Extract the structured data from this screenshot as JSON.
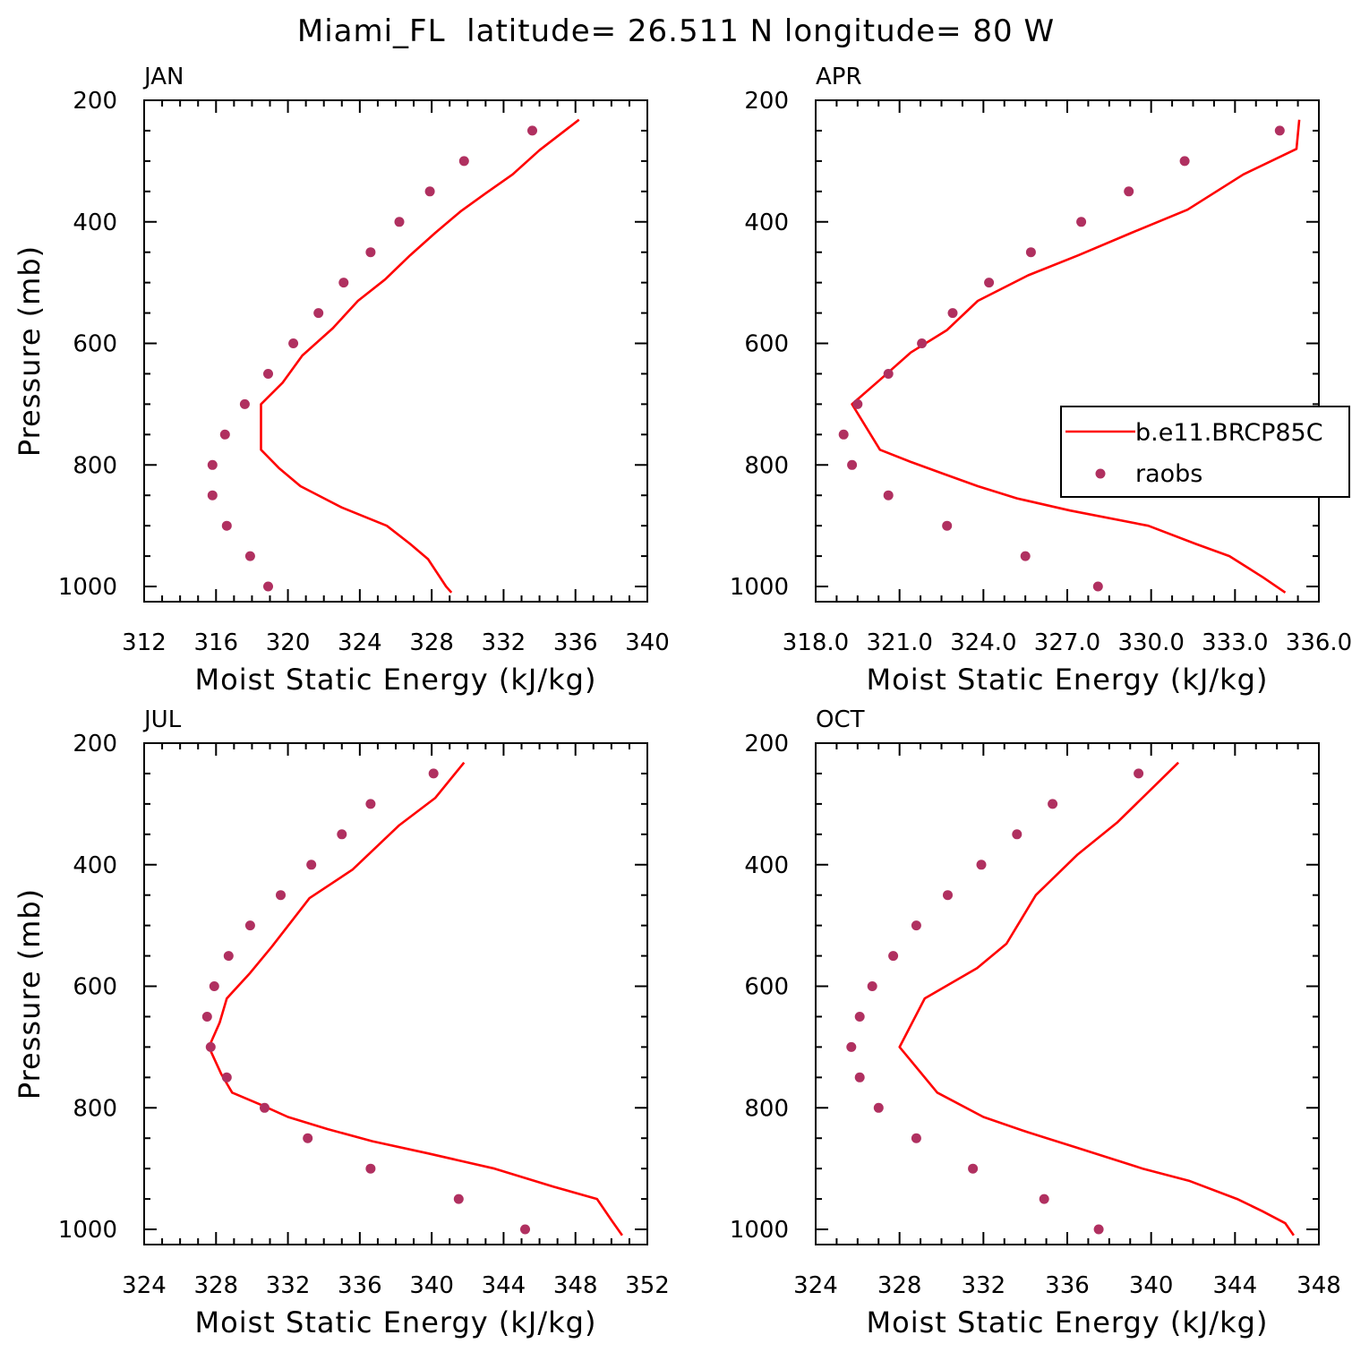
{
  "figure": {
    "title": "Miami_FL  latitude= 26.511 N longitude= 80 W"
  },
  "legend": {
    "entries": [
      {
        "label": "b.e11.BRCP85C",
        "kind": "line",
        "color": "#ff0000"
      },
      {
        "label": "raobs",
        "kind": "marker",
        "color": "#b03060"
      }
    ]
  },
  "chart_data": [
    {
      "type": "scatter",
      "title": "JAN",
      "xlabel": "Moist Static Energy (kJ/kg)",
      "ylabel": "Pressure (mb)",
      "xlim": [
        312,
        340
      ],
      "xticks": [
        "312",
        "316",
        "320",
        "324",
        "328",
        "332",
        "336",
        "340"
      ],
      "ylim": [
        200,
        1025
      ],
      "yticks": [
        "200",
        "400",
        "600",
        "800",
        "1000"
      ],
      "y_inverted": true,
      "series": [
        {
          "name": "b.e11.BRCP85C",
          "kind": "line",
          "color": "#ff0000",
          "points": [
            [
              329.1,
              1010
            ],
            [
              328.8,
              1000
            ],
            [
              327.8,
              955
            ],
            [
              326.8,
              930
            ],
            [
              325.5,
              900
            ],
            [
              323.0,
              870
            ],
            [
              320.7,
              835
            ],
            [
              319.5,
              805
            ],
            [
              318.5,
              775
            ],
            [
              318.5,
              700
            ],
            [
              319.7,
              665
            ],
            [
              320.8,
              620
            ],
            [
              322.5,
              575
            ],
            [
              323.9,
              530
            ],
            [
              325.4,
              495
            ],
            [
              326.8,
              455
            ],
            [
              328.2,
              418
            ],
            [
              329.6,
              383
            ],
            [
              331.0,
              353
            ],
            [
              332.5,
              322
            ],
            [
              334.0,
              282
            ],
            [
              336.2,
              232
            ]
          ]
        },
        {
          "name": "raobs",
          "kind": "scatter",
          "color": "#b03060",
          "points": [
            [
              318.9,
              1000
            ],
            [
              317.9,
              950
            ],
            [
              316.6,
              900
            ],
            [
              315.8,
              850
            ],
            [
              315.8,
              800
            ],
            [
              316.5,
              750
            ],
            [
              317.6,
              700
            ],
            [
              318.9,
              650
            ],
            [
              320.3,
              600
            ],
            [
              321.7,
              550
            ],
            [
              323.1,
              500
            ],
            [
              324.6,
              450
            ],
            [
              326.2,
              400
            ],
            [
              327.9,
              350
            ],
            [
              329.8,
              300
            ],
            [
              333.6,
              250
            ]
          ]
        }
      ]
    },
    {
      "type": "scatter",
      "title": "APR",
      "xlabel": "Moist Static Energy (kJ/kg)",
      "ylabel": "",
      "xlim": [
        318,
        336
      ],
      "xticks": [
        "318.0",
        "321.0",
        "324.0",
        "327.0",
        "330.0",
        "333.0",
        "336.0"
      ],
      "ylim": [
        200,
        1025
      ],
      "yticks": [
        "200",
        "400",
        "600",
        "800",
        "1000"
      ],
      "y_inverted": true,
      "series": [
        {
          "name": "b.e11.BRCP85C",
          "kind": "line",
          "color": "#ff0000",
          "points": [
            [
              334.8,
              1010
            ],
            [
              334.0,
              985
            ],
            [
              332.8,
              950
            ],
            [
              331.6,
              930
            ],
            [
              329.9,
              900
            ],
            [
              327.1,
              875
            ],
            [
              325.2,
              855
            ],
            [
              323.8,
              835
            ],
            [
              322.6,
              815
            ],
            [
              321.4,
              795
            ],
            [
              320.3,
              775
            ],
            [
              319.9,
              745
            ],
            [
              319.3,
              700
            ],
            [
              320.3,
              660
            ],
            [
              321.4,
              615
            ],
            [
              322.7,
              578
            ],
            [
              323.8,
              530
            ],
            [
              325.6,
              488
            ],
            [
              327.4,
              455
            ],
            [
              329.3,
              418
            ],
            [
              331.3,
              380
            ],
            [
              333.3,
              322
            ],
            [
              335.2,
              280
            ],
            [
              335.3,
              232
            ]
          ]
        },
        {
          "name": "raobs",
          "kind": "scatter",
          "color": "#b03060",
          "points": [
            [
              328.1,
              1000
            ],
            [
              325.5,
              950
            ],
            [
              322.7,
              900
            ],
            [
              320.6,
              850
            ],
            [
              319.3,
              800
            ],
            [
              319.0,
              750
            ],
            [
              319.5,
              700
            ],
            [
              320.6,
              650
            ],
            [
              321.8,
              600
            ],
            [
              322.9,
              550
            ],
            [
              324.2,
              500
            ],
            [
              325.7,
              450
            ],
            [
              327.5,
              400
            ],
            [
              329.2,
              350
            ],
            [
              331.2,
              300
            ],
            [
              334.6,
              250
            ]
          ]
        }
      ]
    },
    {
      "type": "scatter",
      "title": "JUL",
      "xlabel": "Moist Static Energy (kJ/kg)",
      "ylabel": "Pressure (mb)",
      "xlim": [
        324,
        352
      ],
      "xticks": [
        "324",
        "328",
        "332",
        "336",
        "340",
        "344",
        "348",
        "352"
      ],
      "ylim": [
        200,
        1025
      ],
      "yticks": [
        "200",
        "400",
        "600",
        "800",
        "1000"
      ],
      "y_inverted": true,
      "series": [
        {
          "name": "b.e11.BRCP85C",
          "kind": "line",
          "color": "#ff0000",
          "points": [
            [
              350.6,
              1010
            ],
            [
              350.0,
              985
            ],
            [
              349.2,
              950
            ],
            [
              346.8,
              930
            ],
            [
              343.5,
              900
            ],
            [
              339.8,
              875
            ],
            [
              336.7,
              855
            ],
            [
              334.2,
              835
            ],
            [
              332.0,
              815
            ],
            [
              330.5,
              795
            ],
            [
              328.9,
              775
            ],
            [
              328.3,
              745
            ],
            [
              327.6,
              700
            ],
            [
              328.2,
              660
            ],
            [
              328.6,
              620
            ],
            [
              329.9,
              578
            ],
            [
              331.1,
              535
            ],
            [
              333.2,
              455
            ],
            [
              335.6,
              408
            ],
            [
              338.2,
              335
            ],
            [
              340.2,
              290
            ],
            [
              341.8,
              232
            ]
          ]
        },
        {
          "name": "raobs",
          "kind": "scatter",
          "color": "#b03060",
          "points": [
            [
              345.2,
              1000
            ],
            [
              341.5,
              950
            ],
            [
              336.6,
              900
            ],
            [
              333.1,
              850
            ],
            [
              330.7,
              800
            ],
            [
              328.6,
              750
            ],
            [
              327.7,
              700
            ],
            [
              327.5,
              650
            ],
            [
              327.9,
              600
            ],
            [
              328.7,
              550
            ],
            [
              329.9,
              500
            ],
            [
              331.6,
              450
            ],
            [
              333.3,
              400
            ],
            [
              335.0,
              350
            ],
            [
              336.6,
              300
            ],
            [
              340.1,
              250
            ]
          ]
        }
      ]
    },
    {
      "type": "scatter",
      "title": "OCT",
      "xlabel": "Moist Static Energy (kJ/kg)",
      "ylabel": "",
      "xlim": [
        324,
        348
      ],
      "xticks": [
        "324",
        "328",
        "332",
        "336",
        "340",
        "344",
        "348"
      ],
      "ylim": [
        200,
        1025
      ],
      "yticks": [
        "200",
        "400",
        "600",
        "800",
        "1000"
      ],
      "y_inverted": true,
      "series": [
        {
          "name": "b.e11.BRCP85C",
          "kind": "line",
          "color": "#ff0000",
          "points": [
            [
              346.8,
              1010
            ],
            [
              346.4,
              990
            ],
            [
              345.3,
              970
            ],
            [
              344.1,
              950
            ],
            [
              341.8,
              920
            ],
            [
              339.6,
              900
            ],
            [
              336.4,
              865
            ],
            [
              334.1,
              840
            ],
            [
              332.0,
              815
            ],
            [
              329.8,
              775
            ],
            [
              328.0,
              700
            ],
            [
              329.2,
              620
            ],
            [
              331.7,
              570
            ],
            [
              333.1,
              530
            ],
            [
              334.5,
              450
            ],
            [
              336.5,
              383
            ],
            [
              338.4,
              330
            ],
            [
              341.3,
              232
            ]
          ]
        },
        {
          "name": "raobs",
          "kind": "scatter",
          "color": "#b03060",
          "points": [
            [
              337.5,
              1000
            ],
            [
              334.9,
              950
            ],
            [
              331.5,
              900
            ],
            [
              328.8,
              850
            ],
            [
              327.0,
              800
            ],
            [
              326.1,
              750
            ],
            [
              325.7,
              700
            ],
            [
              326.1,
              650
            ],
            [
              326.7,
              600
            ],
            [
              327.7,
              550
            ],
            [
              328.8,
              500
            ],
            [
              330.3,
              450
            ],
            [
              331.9,
              400
            ],
            [
              333.6,
              350
            ],
            [
              335.3,
              300
            ],
            [
              339.4,
              250
            ]
          ]
        }
      ]
    }
  ]
}
